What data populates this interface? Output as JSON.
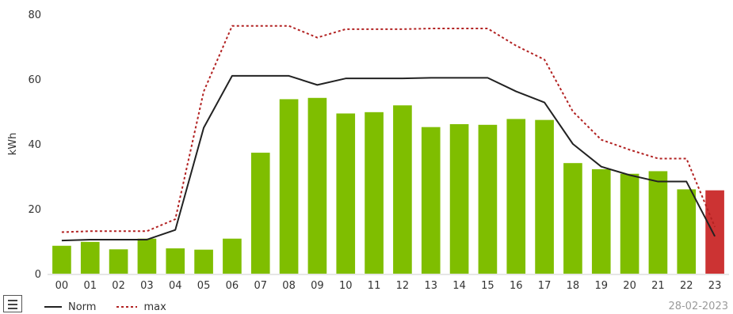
{
  "chart_data": {
    "type": "bar",
    "ylabel": "kWh",
    "ylim": [
      0,
      80
    ],
    "yticks": [
      0,
      20,
      40,
      60,
      80
    ],
    "categories": [
      "00",
      "01",
      "02",
      "03",
      "04",
      "05",
      "06",
      "07",
      "08",
      "09",
      "10",
      "11",
      "12",
      "13",
      "14",
      "15",
      "16",
      "17",
      "18",
      "19",
      "20",
      "21",
      "22",
      "23"
    ],
    "series": [
      {
        "kind": "bar",
        "values": [
          8.6,
          9.8,
          7.5,
          10.8,
          7.8,
          7.4,
          10.8,
          37.3,
          53.8,
          54.2,
          49.4,
          49.8,
          51.9,
          45.2,
          46.1,
          45.9,
          47.7,
          47.4,
          34.1,
          32.2,
          30.8,
          31.6,
          26.0,
          25.7
        ],
        "colors": [
          "#7fbe00",
          "#7fbe00",
          "#7fbe00",
          "#7fbe00",
          "#7fbe00",
          "#7fbe00",
          "#7fbe00",
          "#7fbe00",
          "#7fbe00",
          "#7fbe00",
          "#7fbe00",
          "#7fbe00",
          "#7fbe00",
          "#7fbe00",
          "#7fbe00",
          "#7fbe00",
          "#7fbe00",
          "#7fbe00",
          "#7fbe00",
          "#7fbe00",
          "#7fbe00",
          "#7fbe00",
          "#7fbe00",
          "#cc3333"
        ]
      },
      {
        "name": "Norm",
        "kind": "line",
        "style": "solid",
        "color": "#222222",
        "values": [
          10.2,
          10.5,
          10.5,
          10.5,
          13.5,
          45.0,
          61.0,
          61.0,
          61.0,
          58.2,
          60.2,
          60.2,
          60.2,
          60.4,
          60.4,
          60.4,
          56.2,
          52.8,
          40.0,
          33.0,
          30.4,
          28.4,
          28.4,
          11.5
        ]
      },
      {
        "name": "max",
        "kind": "line",
        "style": "dotted",
        "color": "#b22222",
        "values": [
          12.8,
          13.1,
          13.1,
          13.1,
          16.8,
          56.2,
          76.4,
          76.4,
          76.4,
          72.8,
          75.4,
          75.4,
          75.4,
          75.6,
          75.6,
          75.6,
          70.3,
          66.0,
          50.0,
          41.3,
          38.2,
          35.5,
          35.5,
          14.4
        ]
      }
    ],
    "legend": {
      "position": "bottom-left"
    },
    "grid": false
  },
  "footer": {
    "date": "28-02-2023",
    "menu_icon": "hamburger-menu-icon"
  }
}
